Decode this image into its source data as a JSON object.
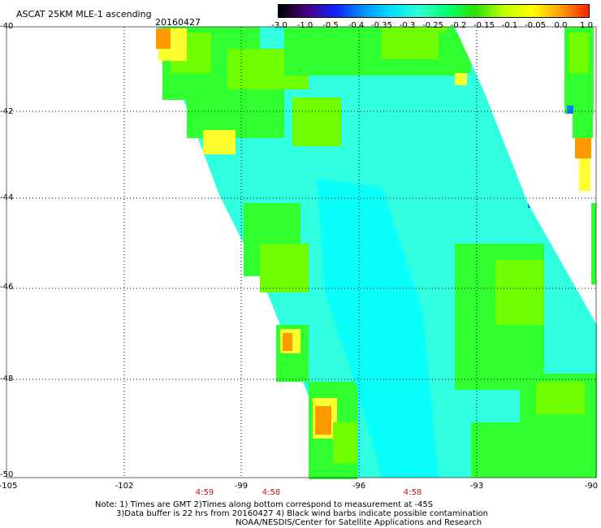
{
  "header": {
    "title": "ASCAT 25KM MLE-1 ascending",
    "date": "20160427"
  },
  "colorbar": {
    "tick_labels": [
      "-3.0",
      "-1.0",
      "-0.5",
      "-0.4",
      "-0.35",
      "-0.3",
      "-0.25",
      "-0.2",
      "-0.15",
      "-0.1",
      "-0.05",
      "0.0",
      "1.0"
    ],
    "colors": [
      "#000000",
      "#4b0082",
      "#1020ff",
      "#0090ff",
      "#00e0ff",
      "#30ffd0",
      "#00ff70",
      "#30e000",
      "#c0ff00",
      "#ffff00",
      "#ffa000",
      "#ff2000"
    ]
  },
  "axes": {
    "lat_labels": [
      "-40",
      "-42",
      "-44",
      "-46",
      "-48",
      "-50"
    ],
    "lon_labels": [
      "-105",
      "-102",
      "-99",
      "-96",
      "-93",
      "-90"
    ],
    "lon_range": [
      -105,
      -90
    ],
    "lat_range": [
      -40,
      -50
    ]
  },
  "times": [
    {
      "label": "4:59",
      "lon": -99.9
    },
    {
      "label": "4:58",
      "lon": -98.3
    },
    {
      "label": "4:58",
      "lon": -93.7
    }
  ],
  "footer": {
    "line1": "Note: 1) Times are GMT 2)Times along bottom correspond to measurement at -45S",
    "line2": "3)Data buffer is 22 hrs from 20160427 4) Black wind barbs indicate possible contamination",
    "line3": "NOAA/NESDIS/Center for Satellite Applications and Research"
  },
  "palette": {
    "orange": "#ff9a00",
    "yellow": "#ffff30",
    "green": "#30ff30",
    "lime": "#70ff00",
    "cyan": "#30ffe0",
    "aqua": "#00ffff",
    "blue": "#0080ff"
  }
}
